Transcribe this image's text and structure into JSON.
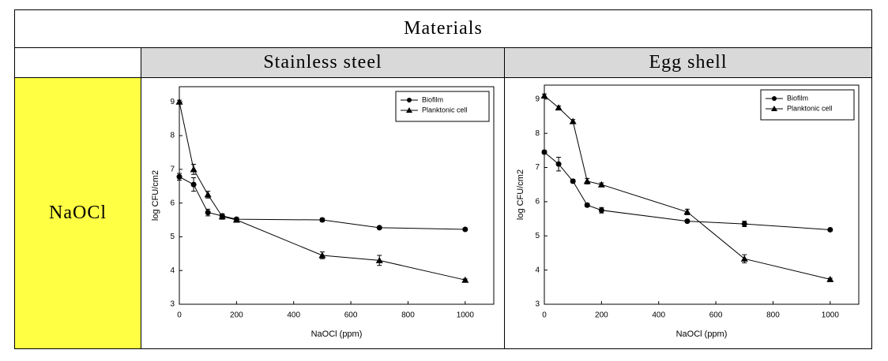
{
  "table": {
    "header": "Materials",
    "columns": [
      "Stainless steel",
      "Egg shell"
    ],
    "row_label": "NaOCl"
  },
  "chart_data": [
    {
      "type": "line",
      "xlabel": "NaOCl (ppm)",
      "ylabel": "log CFU/cm2",
      "x": [
        0,
        50,
        100,
        150,
        200,
        500,
        700,
        1000
      ],
      "xlim": [
        0,
        1100
      ],
      "xticks": [
        0,
        200,
        400,
        600,
        800,
        1000
      ],
      "ylim": [
        3,
        9.45
      ],
      "yticks": [
        3,
        4,
        5,
        6,
        7,
        8,
        9
      ],
      "legend": "upper right",
      "series": [
        {
          "name": "Biofilm",
          "color": "#000000",
          "marker": "circle",
          "values": [
            6.78,
            6.55,
            5.72,
            5.62,
            5.52,
            5.5,
            5.27,
            5.22
          ],
          "errors": [
            0.1,
            0.2,
            0.1,
            0.05,
            0.05,
            0.05,
            0.03,
            0.03
          ]
        },
        {
          "name": "Planktonic cell",
          "color": "#000000",
          "marker": "triangle",
          "values": [
            9.0,
            7.0,
            6.25,
            5.6,
            5.5,
            4.45,
            4.3,
            3.72
          ],
          "errors": [
            0.05,
            0.15,
            0.1,
            0.08,
            0.05,
            0.1,
            0.15,
            0.03
          ]
        }
      ]
    },
    {
      "type": "line",
      "xlabel": "NaOCl (ppm)",
      "ylabel": "log CFU/cm2",
      "x": [
        0,
        50,
        100,
        150,
        200,
        500,
        700,
        1000
      ],
      "xlim": [
        0,
        1100
      ],
      "xticks": [
        0,
        200,
        400,
        600,
        800,
        1000
      ],
      "ylim": [
        3,
        9.41
      ],
      "yticks": [
        3,
        4,
        5,
        6,
        7,
        8,
        9
      ],
      "legend": "upper right",
      "series": [
        {
          "name": "Biofilm",
          "color": "#000000",
          "marker": "circle",
          "values": [
            7.45,
            7.1,
            6.6,
            5.9,
            5.75,
            5.43,
            5.35,
            5.18
          ],
          "errors": [
            0.05,
            0.2,
            0.05,
            0.05,
            0.08,
            0.03,
            0.08,
            0.03
          ]
        },
        {
          "name": "Planktonic cell",
          "color": "#000000",
          "marker": "triangle",
          "values": [
            9.1,
            8.75,
            8.35,
            6.6,
            6.5,
            5.7,
            4.33,
            3.73
          ],
          "errors": [
            0.05,
            0.05,
            0.05,
            0.08,
            0.05,
            0.08,
            0.12,
            0.03
          ]
        }
      ]
    }
  ]
}
